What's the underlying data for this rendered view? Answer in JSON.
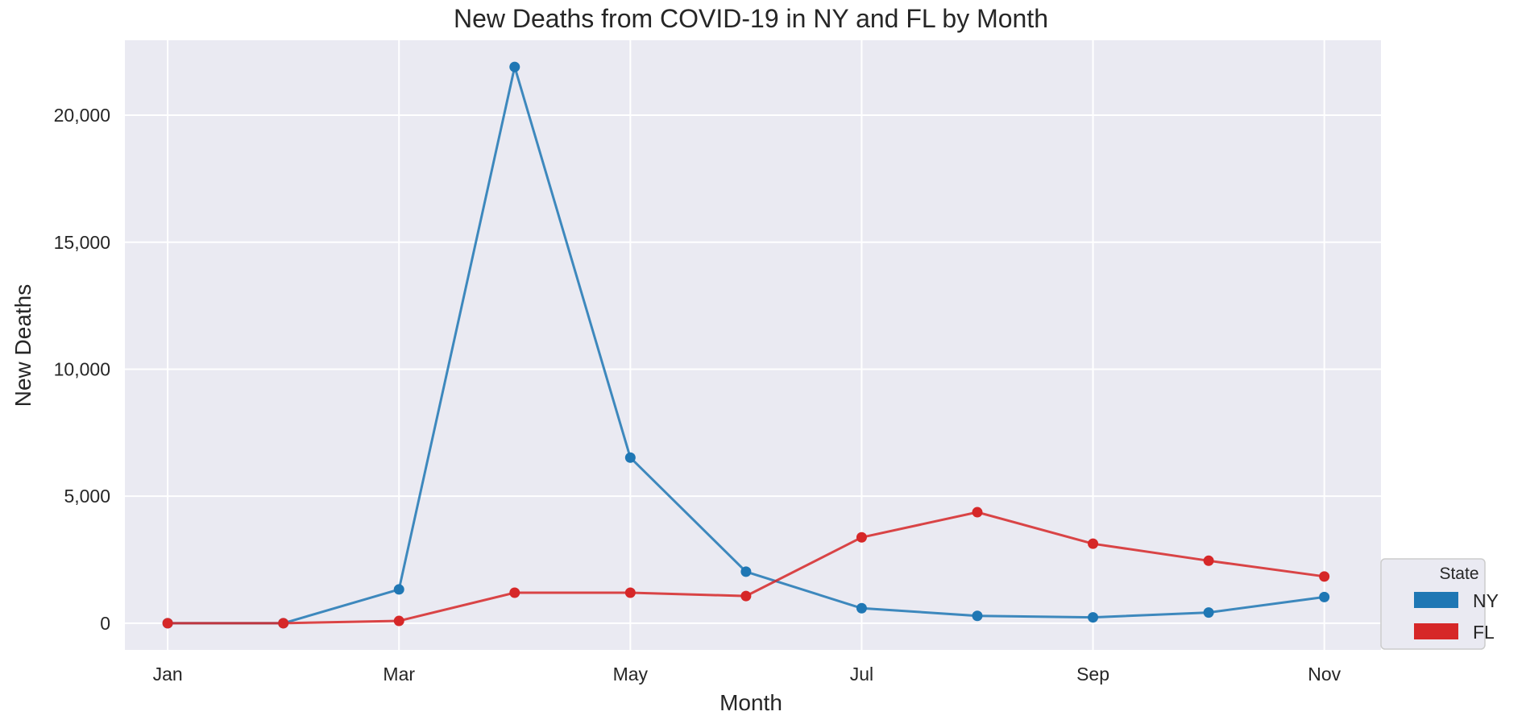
{
  "chart_data": {
    "type": "line",
    "title": "New Deaths from COVID-19 in NY and FL by Month",
    "xlabel": "Month",
    "ylabel": "New Deaths",
    "x": [
      1,
      2,
      3,
      4,
      5,
      6,
      7,
      8,
      9,
      10,
      11
    ],
    "x_tick_values": [
      1,
      3,
      5,
      7,
      9,
      11
    ],
    "x_tick_labels": [
      "Jan",
      "Mar",
      "May",
      "Jul",
      "Sep",
      "Nov"
    ],
    "y_ticks": [
      0,
      5000,
      10000,
      15000,
      20000
    ],
    "y_tick_labels": [
      "0",
      "5,000",
      "10,000",
      "15,000",
      "20,000"
    ],
    "ylim": [
      -1050,
      22950
    ],
    "xlim": [
      0.63,
      11.49
    ],
    "grid": true,
    "background": "#eaeaf2",
    "legend": {
      "title": "State",
      "placement": "outside-bottom-right"
    },
    "series": [
      {
        "name": "NY",
        "color": "#1f77b4",
        "values": [
          0,
          0,
          1330,
          21900,
          6520,
          2030,
          590,
          290,
          230,
          420,
          1030
        ]
      },
      {
        "name": "FL",
        "color": "#d62728",
        "values": [
          0,
          0,
          90,
          1200,
          1200,
          1070,
          3380,
          4370,
          3130,
          2460,
          1840
        ]
      }
    ]
  }
}
